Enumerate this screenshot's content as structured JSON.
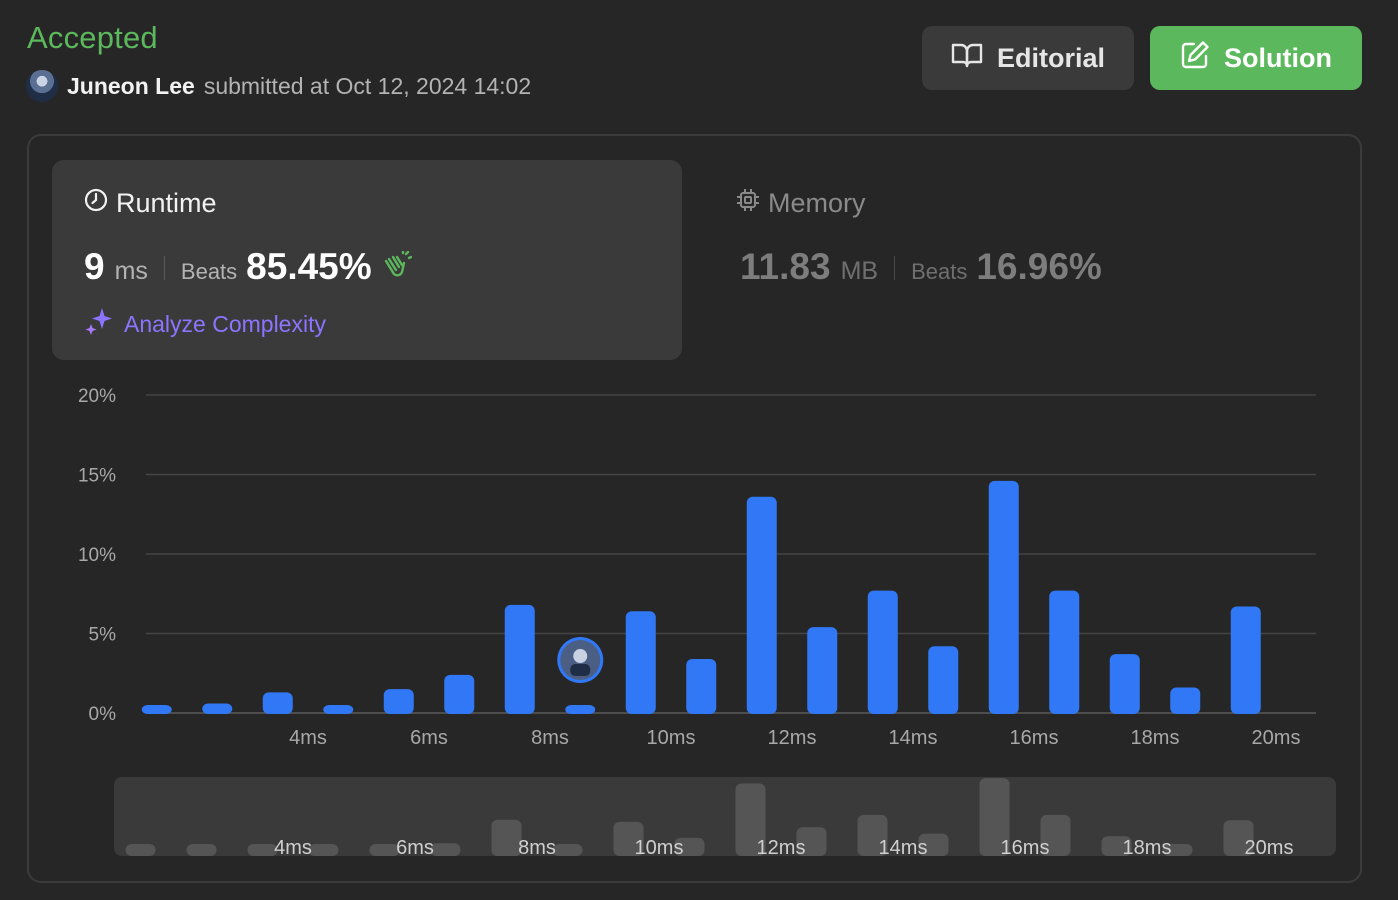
{
  "header": {
    "status": "Accepted",
    "user_name": "Juneon Lee",
    "submitted_text": "submitted at Oct 12, 2024 14:02"
  },
  "buttons": {
    "editorial": "Editorial",
    "solution": "Solution"
  },
  "runtime": {
    "title": "Runtime",
    "value": "9",
    "unit": "ms",
    "beats_label": "Beats",
    "beats_value": "85.45%",
    "analyze_label": "Analyze Complexity"
  },
  "memory": {
    "title": "Memory",
    "value": "11.83",
    "unit": "MB",
    "beats_label": "Beats",
    "beats_value": "16.96%"
  },
  "colors": {
    "accent_green": "#5cb85c",
    "bar_blue": "#3178f6",
    "analyze_purple": "#8c74ff"
  },
  "icons": {
    "editorial": "book-icon",
    "solution": "edit-icon",
    "runtime": "clock-icon",
    "memory": "chip-icon",
    "beats": "clap-icon",
    "analyze": "sparkle-icon"
  },
  "chart_data": {
    "type": "bar",
    "y_ticks": [
      "20%",
      "15%",
      "10%",
      "5%",
      "0%"
    ],
    "ylim": [
      0,
      20
    ],
    "x_tick_labels": [
      "4ms",
      "6ms",
      "8ms",
      "10ms",
      "12ms",
      "14ms",
      "16ms",
      "18ms",
      "20ms"
    ],
    "x_tick_positions": [
      4,
      6,
      8,
      10,
      12,
      14,
      16,
      18,
      20
    ],
    "x": [
      1.5,
      2.5,
      3.5,
      4.5,
      5.5,
      6.5,
      7.5,
      8.5,
      9.5,
      10.5,
      11.5,
      12.5,
      13.5,
      14.5,
      15.5,
      16.5,
      17.5,
      18.5,
      19.5,
      20.5
    ],
    "values": [
      0.5,
      0.6,
      1.3,
      0.5,
      1.5,
      2.4,
      6.8,
      0.5,
      6.4,
      3.4,
      13.6,
      5.4,
      7.7,
      4.2,
      14.6,
      7.7,
      3.7,
      1.6,
      6.7,
      0
    ],
    "your_submission_x": 8.5,
    "grid": true
  }
}
